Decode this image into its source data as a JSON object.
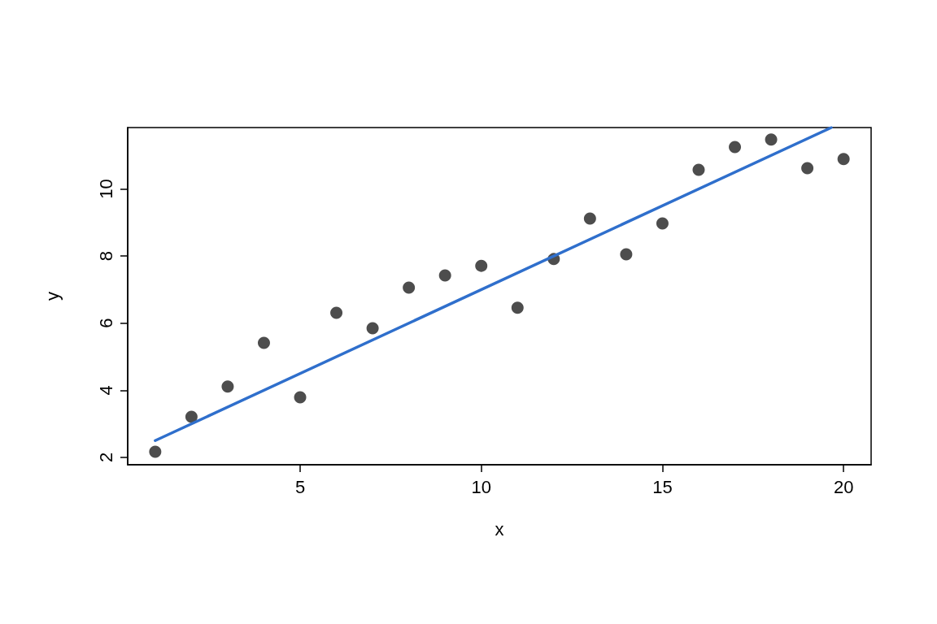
{
  "chart_data": {
    "type": "scatter",
    "xlabel": "x",
    "ylabel": "y",
    "xlim": [
      0.24,
      20.76
    ],
    "xticks": [
      5,
      10,
      15,
      20
    ],
    "ylim": [
      1.78,
      11.83
    ],
    "yticks": [
      2,
      4,
      6,
      8,
      10
    ],
    "grid": false,
    "series": [
      {
        "type": "scatter",
        "color": "#4d4d4d",
        "marker": "circle",
        "x": [
          1,
          2,
          3,
          4,
          5,
          6,
          7,
          8,
          9,
          10,
          11,
          12,
          13,
          14,
          15,
          16,
          17,
          18,
          19,
          20
        ],
        "values": [
          2.17,
          3.21,
          4.11,
          5.41,
          3.79,
          6.31,
          5.85,
          7.06,
          7.42,
          7.71,
          6.46,
          7.91,
          9.12,
          8.05,
          8.97,
          10.57,
          11.25,
          11.47,
          10.62,
          10.89
        ]
      },
      {
        "type": "line",
        "color": "#2f6fcc",
        "marker": "none",
        "line_style": "solid",
        "x": [
          1,
          19.66
        ],
        "values": [
          2.5,
          11.83
        ]
      }
    ]
  }
}
